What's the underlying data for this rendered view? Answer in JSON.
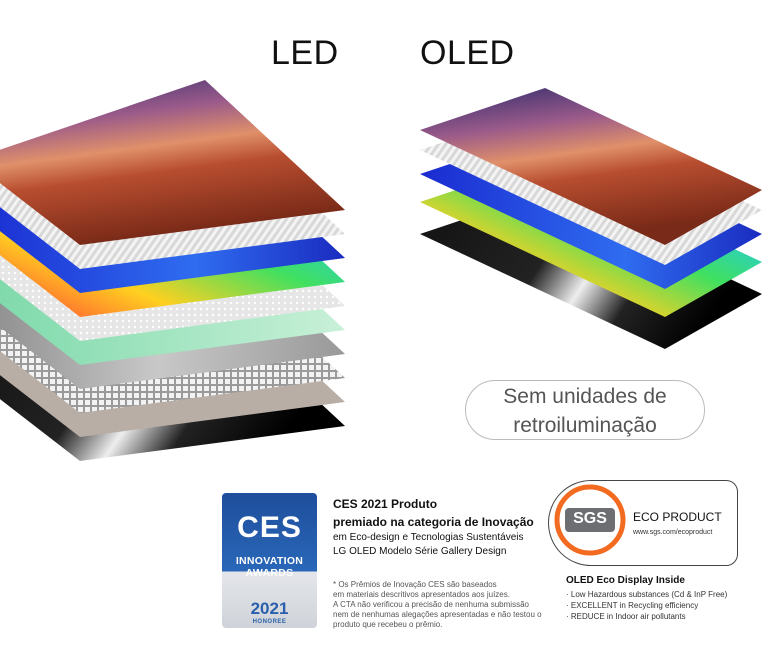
{
  "headings": {
    "led": "LED",
    "oled": "OLED"
  },
  "callout": {
    "lines": [
      "Sem unidades de",
      "retroiluminação"
    ]
  },
  "ces_badge": {
    "logo": "CES",
    "award": [
      "INNOVATION",
      "AWARDS"
    ],
    "year": "2021",
    "status": "HONOREE"
  },
  "ces_text": {
    "lines": [
      "CES 2021 Produto",
      "premiado na categoria de Inovação",
      "em Eco-design e Tecnologias Sustentáveis",
      "LG OLED Modelo Série Gallery Design"
    ],
    "footnote": [
      "* Os Prêmios de Inovação CES são baseados",
      "em materiais descritivos apresentados aos juízes.",
      "A CTA não verificou a precisão de nenhuma submissão",
      "nem de nenhumas alegações apresentadas e não testou o",
      "produto que recebeu o prêmio."
    ]
  },
  "sgs": {
    "logo": "SGS",
    "label": "ECO PRODUCT",
    "url": "www.sgs.com/ecoproduct"
  },
  "eco": {
    "title": "OLED Eco Display Inside",
    "items": [
      "· Low Hazardous substances (Cd & InP Free)",
      "· EXCELLENT in Recycling efficiency",
      "· REDUCE in Indoor air pollutants"
    ]
  }
}
